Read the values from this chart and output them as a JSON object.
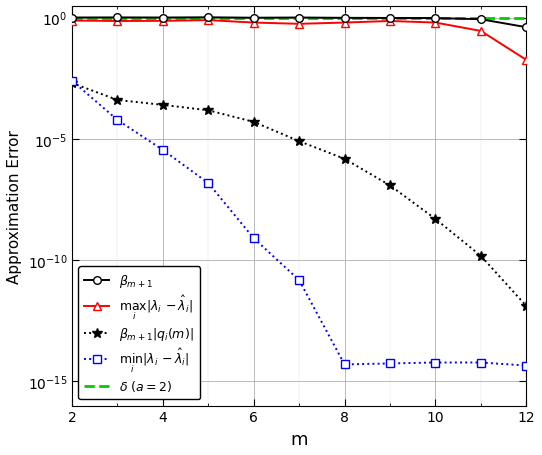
{
  "m_values": [
    2,
    3,
    4,
    5,
    6,
    7,
    8,
    9,
    10,
    11,
    12
  ],
  "beta_m1": [
    1.0,
    1.01,
    1.0,
    1.02,
    0.98,
    1.0,
    0.97,
    0.96,
    0.95,
    0.85,
    0.4
  ],
  "max_lambda": [
    0.75,
    0.72,
    0.73,
    0.78,
    0.62,
    0.55,
    0.62,
    0.72,
    0.62,
    0.28,
    0.018
  ],
  "beta_qi": [
    0.002,
    0.0004,
    0.00025,
    0.00015,
    5e-05,
    8e-06,
    1.5e-06,
    1.2e-07,
    5e-09,
    1.5e-10,
    1.3e-12
  ],
  "min_lambda": [
    0.0025,
    6e-05,
    3.5e-06,
    1.5e-07,
    8e-10,
    1.5e-11,
    5e-15,
    5.5e-15,
    6e-15,
    6e-15,
    4.5e-15
  ],
  "delta": 1.0,
  "xlim": [
    2,
    12
  ],
  "ylim": [
    1e-16,
    3.0
  ],
  "yticks": [
    1e-15,
    1e-10,
    1e-05,
    1.0
  ],
  "xlabel": "m",
  "ylabel": "Approximation Error",
  "legend_labels": [
    "$\\beta_{m+1}$",
    "$\\max_i |\\lambda_i - \\hat{\\lambda}_i|$",
    "$\\beta_{m+1}|q_i(m)|$",
    "$\\min_i |\\lambda_i - \\hat{\\lambda}_i|$",
    "$\\delta\\ (a=2)$"
  ],
  "color_beta": "#000000",
  "color_max": "#ff0000",
  "color_betaqi": "#000000",
  "color_min": "#0000ff",
  "color_delta": "#00cc00",
  "bg_color": "#ffffff"
}
